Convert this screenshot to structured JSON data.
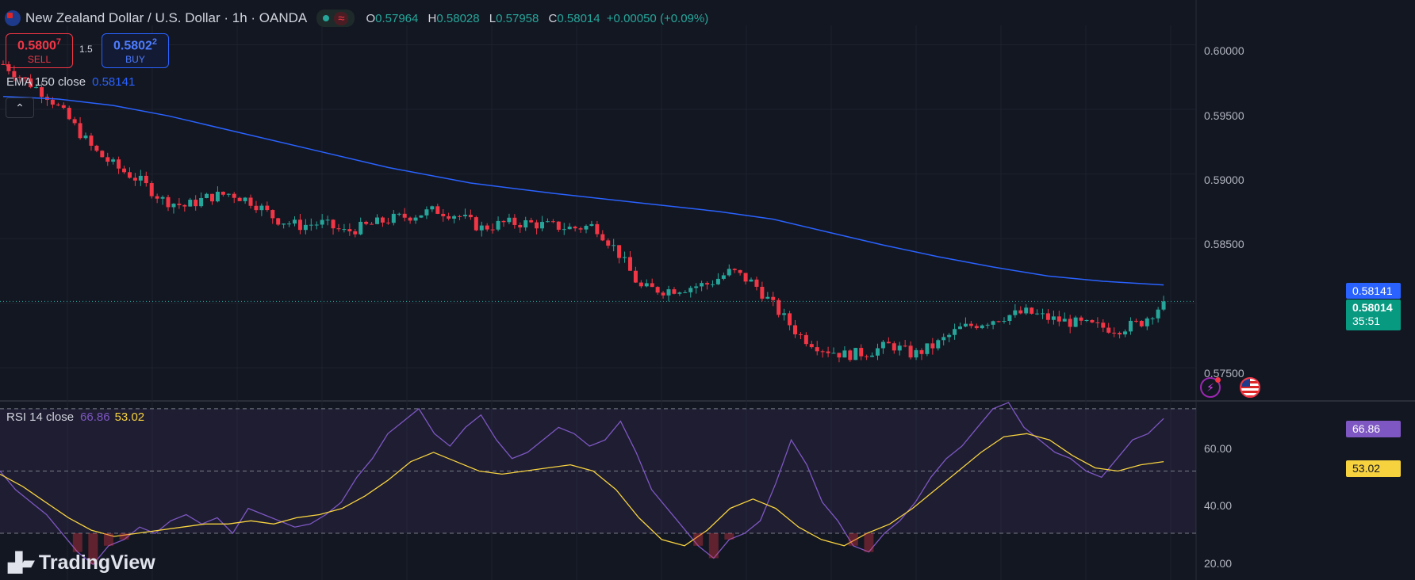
{
  "header": {
    "title": "New Zealand Dollar / U.S. Dollar · 1h · OANDA",
    "ohlc": {
      "o_label": "O",
      "o": "0.57964",
      "h_label": "H",
      "h": "0.58028",
      "l_label": "L",
      "l": "0.57958",
      "c_label": "C",
      "c": "0.58014",
      "change": "+0.00050 (+0.09%)"
    }
  },
  "trade": {
    "sell_price": "0.5800",
    "sell_sup": "7",
    "sell_label": "SELL",
    "spread": "1.5",
    "buy_price": "0.5802",
    "buy_sup": "2",
    "buy_label": "BUY"
  },
  "ema_legend": {
    "label": "EMA 150 close",
    "value": "0.58141"
  },
  "rsi_legend": {
    "label": "RSI 14 close",
    "value": "66.86",
    "ma_value": "53.02"
  },
  "logo": "TradingView",
  "price_axis": {
    "ticks": [
      "0.60000",
      "0.59500",
      "0.59000",
      "0.58500",
      "0.58000",
      "0.57500"
    ],
    "ema_badge": "0.58141",
    "last_badge": "0.58014",
    "countdown": "35:51"
  },
  "rsi_axis": {
    "ticks": [
      "60.00",
      "40.00",
      "20.00"
    ],
    "rsi_badge": "66.86",
    "ma_badge": "53.02"
  },
  "colors": {
    "up": "#26a69a",
    "down": "#f23645",
    "ema": "#2962ff",
    "rsi": "#7e57c2",
    "rsi_ma": "#f7d23f",
    "bg": "#131722"
  },
  "chart_data": {
    "type": "candlestick",
    "price_ylim": [
      0.5725,
      0.6015
    ],
    "ema150": [
      [
        0,
        0.596
      ],
      [
        10,
        0.5958
      ],
      [
        20,
        0.5953
      ],
      [
        30,
        0.5945
      ],
      [
        40,
        0.5935
      ],
      [
        55,
        0.592
      ],
      [
        70,
        0.5905
      ],
      [
        85,
        0.5893
      ],
      [
        100,
        0.5885
      ],
      [
        115,
        0.5878
      ],
      [
        130,
        0.5871
      ],
      [
        140,
        0.5865
      ],
      [
        150,
        0.5855
      ],
      [
        160,
        0.5845
      ],
      [
        170,
        0.5836
      ],
      [
        180,
        0.5828
      ],
      [
        190,
        0.5821
      ],
      [
        200,
        0.5817
      ],
      [
        211,
        0.58141
      ]
    ],
    "price_path": [
      0.5985,
      0.5972,
      0.596,
      0.594,
      0.5918,
      0.5905,
      0.5895,
      0.588,
      0.5875,
      0.5882,
      0.5885,
      0.5878,
      0.5865,
      0.586,
      0.5862,
      0.5855,
      0.586,
      0.5865,
      0.5868,
      0.5872,
      0.5868,
      0.5858,
      0.5862,
      0.5862,
      0.586,
      0.5858,
      0.586,
      0.584,
      0.5812,
      0.581,
      0.5812,
      0.5815,
      0.5825,
      0.5815,
      0.5795,
      0.5775,
      0.5765,
      0.576,
      0.5762,
      0.5768,
      0.576,
      0.5768,
      0.578,
      0.5785,
      0.579,
      0.5793,
      0.5788,
      0.5785,
      0.5782,
      0.578,
      0.5785,
      0.58
    ],
    "last_close": 0.58014,
    "rsi_ylim": [
      15,
      72
    ],
    "rsi_levels": [
      70,
      50,
      30
    ],
    "rsi_path": [
      50,
      44,
      40,
      36,
      30,
      24,
      20,
      26,
      28,
      32,
      30,
      34,
      36,
      33,
      35,
      30,
      38,
      36,
      34,
      32,
      33,
      36,
      40,
      48,
      54,
      62,
      66,
      70,
      62,
      58,
      64,
      68,
      60,
      54,
      56,
      60,
      64,
      62,
      58,
      60,
      66,
      56,
      44,
      38,
      32,
      26,
      22,
      28,
      30,
      34,
      46,
      60,
      52,
      40,
      34,
      26,
      24,
      30,
      34,
      40,
      48,
      54,
      58,
      64,
      70,
      72,
      64,
      60,
      56,
      54,
      50,
      48,
      54,
      60,
      62,
      66.86
    ],
    "rsi_ma_path": [
      49,
      45,
      40,
      35,
      31,
      29,
      30,
      31,
      32,
      33,
      33,
      34,
      33,
      35,
      36,
      38,
      42,
      47,
      53,
      56,
      53,
      50,
      49,
      50,
      51,
      52,
      50,
      44,
      35,
      28,
      26,
      31,
      38,
      41,
      38,
      32,
      28,
      26,
      30,
      33,
      38,
      44,
      50,
      56,
      61,
      62,
      60,
      55,
      51,
      50,
      52,
      53.02
    ]
  }
}
